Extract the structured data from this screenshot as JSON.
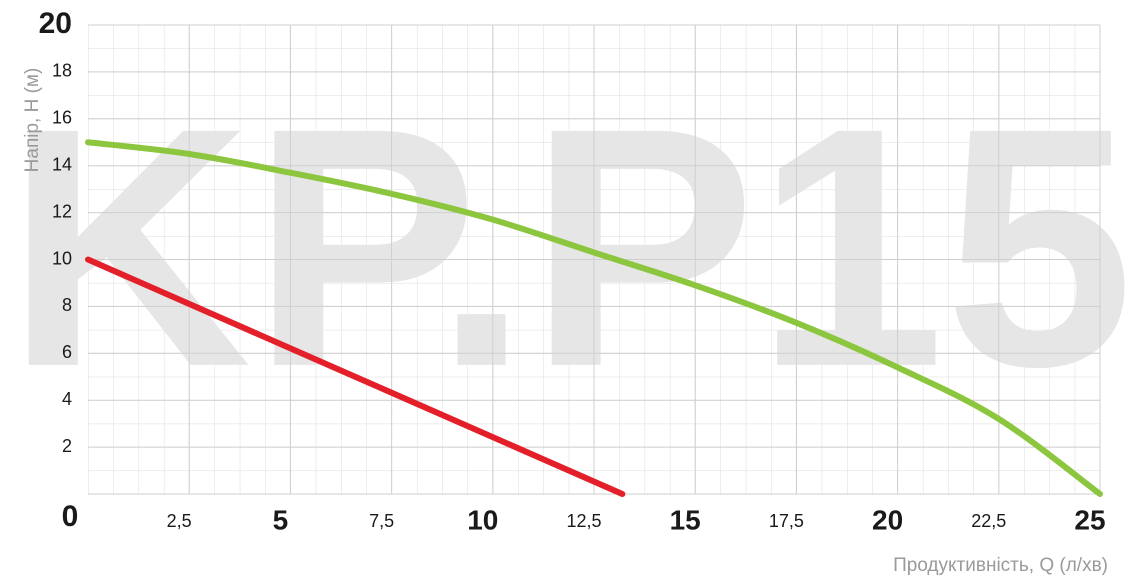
{
  "chart_data": {
    "type": "line",
    "watermark": "KP.P15",
    "x_label": "Продуктивність, Q (л/хв)",
    "y_label": "Напір, H (м)",
    "xlim": [
      0,
      25
    ],
    "ylim": [
      0,
      20
    ],
    "xticks": [
      {
        "value": 2.5,
        "label": "2,5"
      },
      5,
      {
        "value": 7.5,
        "label": "7,5"
      },
      10,
      {
        "value": 12.5,
        "label": "12,5"
      },
      15,
      {
        "value": 17.5,
        "label": "17,5"
      },
      20,
      {
        "value": 22.5,
        "label": "22,5"
      },
      25
    ],
    "yticks": [
      0,
      2,
      4,
      6,
      8,
      10,
      12,
      14,
      16,
      18,
      20
    ],
    "grid": true,
    "series": [
      {
        "color": "#8cc63f",
        "x": [
          0,
          2.5,
          5,
          7.5,
          10,
          12.5,
          15,
          17.5,
          20,
          22.5,
          25
        ],
        "values": [
          15,
          14.5,
          13.7,
          12.8,
          11.7,
          10.3,
          8.9,
          7.3,
          5.4,
          3.2,
          0
        ]
      },
      {
        "color": "#e3202a",
        "x": [
          0,
          13.2
        ],
        "values": [
          10,
          0
        ]
      }
    ]
  }
}
